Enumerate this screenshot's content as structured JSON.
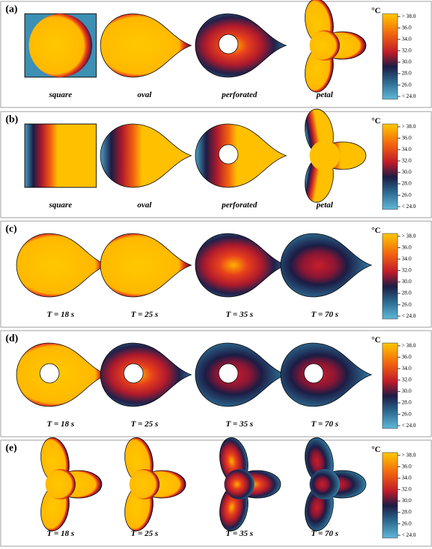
{
  "panels": [
    {
      "label": "(a)",
      "unit": "°C",
      "captions": [
        "square",
        "oval",
        "perforated",
        "petal"
      ],
      "colorbar_ticks": [
        "> 38.0",
        "36.0",
        "34.0",
        "32.0",
        "30.0",
        "28.0",
        "26.0",
        "< 24.0"
      ]
    },
    {
      "label": "(b)",
      "unit": "°C",
      "captions": [
        "square",
        "oval",
        "perforated",
        "petal"
      ],
      "colorbar_ticks": [
        "> 38.0",
        "36.0",
        "34.0",
        "32.0",
        "30.0",
        "28.0",
        "26.0",
        "< 24.0"
      ]
    },
    {
      "label": "(c)",
      "unit": "°C",
      "captions": [
        "T = 18 s",
        "T = 25 s",
        "T = 35 s",
        "T = 70 s"
      ],
      "colorbar_ticks": [
        "> 38.0",
        "36.0",
        "34.0",
        "32.0",
        "30.0",
        "28.0",
        "26.0",
        "< 24.0"
      ]
    },
    {
      "label": "(d)",
      "unit": "°C",
      "captions": [
        "T = 18 s",
        "T = 25 s",
        "T = 35 s",
        "T = 70 s"
      ],
      "colorbar_ticks": [
        "> 38.0",
        "36.0",
        "34.0",
        "32.0",
        "30.0",
        "28.0",
        "26.0",
        "< 24.0"
      ]
    },
    {
      "label": "(e)",
      "unit": "°C",
      "captions": [
        "T = 18 s",
        "T = 25 s",
        "T = 35 s",
        "T = 70 s"
      ],
      "colorbar_ticks": [
        "> 38.0",
        "36.0",
        "34.0",
        "32.0",
        "30.0",
        "28.0",
        "26.0",
        "< 24.0"
      ]
    }
  ]
}
